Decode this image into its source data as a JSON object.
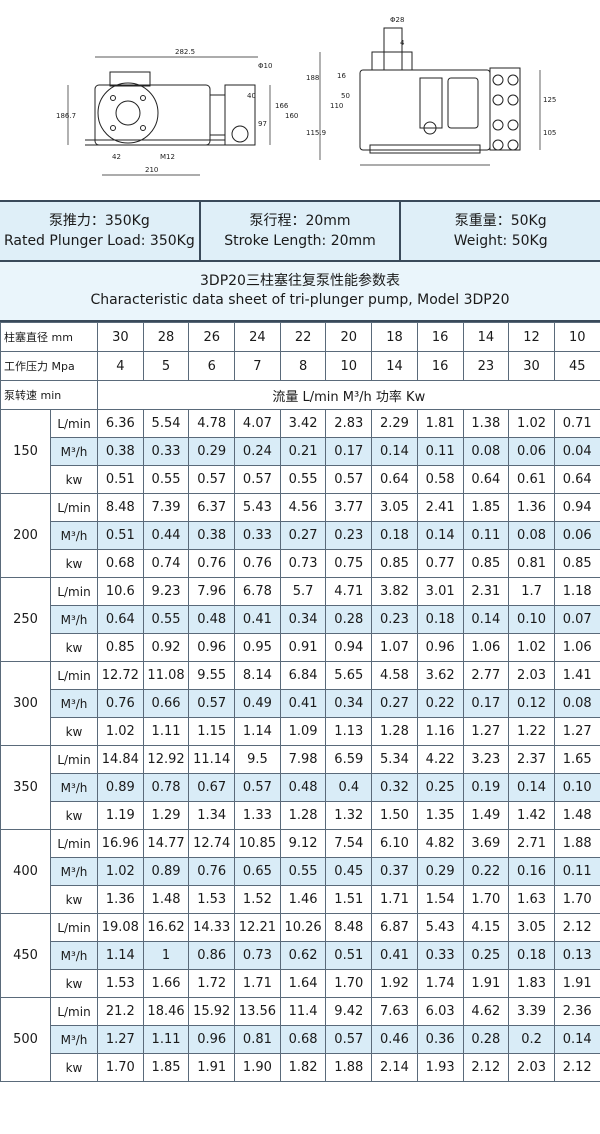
{
  "drawing": {
    "dims": [
      "282.5",
      "Φ10",
      "40",
      "186.7",
      "42",
      "M12",
      "210",
      "Φ28",
      "4",
      "188",
      "16",
      "110",
      "50",
      "97",
      "166",
      "160",
      "115.9",
      "125",
      "105"
    ]
  },
  "specs": [
    {
      "zh": "泵推力：350Kg",
      "en": "Rated Plunger Load: 350Kg"
    },
    {
      "zh": "泵行程：20mm",
      "en": "Stroke Length: 20mm"
    },
    {
      "zh": "泵重量：50Kg",
      "en": "Weight: 50Kg"
    }
  ],
  "table_title": {
    "zh": "3DP20三柱塞往复泵性能参数表",
    "en": "Characteristic data sheet of tri-plunger pump, Model 3DP20"
  },
  "header": {
    "diameter_label": "柱塞直径 mm",
    "diameters": [
      "30",
      "28",
      "26",
      "24",
      "22",
      "20",
      "18",
      "16",
      "14",
      "12",
      "10"
    ],
    "pressure_label": "工作压力 Mpa",
    "pressures": [
      "4",
      "5",
      "6",
      "7",
      "8",
      "10",
      "14",
      "16",
      "23",
      "30",
      "45"
    ],
    "speed_label": "泵转速 min",
    "band_label": "流量 L/min  M³/h  功率 Kw"
  },
  "units": [
    "L/min",
    "M³/h",
    "kw"
  ],
  "rows": [
    {
      "speed": "150",
      "lmin": [
        "6.36",
        "5.54",
        "4.78",
        "4.07",
        "3.42",
        "2.83",
        "2.29",
        "1.81",
        "1.38",
        "1.02",
        "0.71"
      ],
      "m3h": [
        "0.38",
        "0.33",
        "0.29",
        "0.24",
        "0.21",
        "0.17",
        "0.14",
        "0.11",
        "0.08",
        "0.06",
        "0.04"
      ],
      "kw": [
        "0.51",
        "0.55",
        "0.57",
        "0.57",
        "0.55",
        "0.57",
        "0.64",
        "0.58",
        "0.64",
        "0.61",
        "0.64"
      ]
    },
    {
      "speed": "200",
      "lmin": [
        "8.48",
        "7.39",
        "6.37",
        "5.43",
        "4.56",
        "3.77",
        "3.05",
        "2.41",
        "1.85",
        "1.36",
        "0.94"
      ],
      "m3h": [
        "0.51",
        "0.44",
        "0.38",
        "0.33",
        "0.27",
        "0.23",
        "0.18",
        "0.14",
        "0.11",
        "0.08",
        "0.06"
      ],
      "kw": [
        "0.68",
        "0.74",
        "0.76",
        "0.76",
        "0.73",
        "0.75",
        "0.85",
        "0.77",
        "0.85",
        "0.81",
        "0.85"
      ]
    },
    {
      "speed": "250",
      "lmin": [
        "10.6",
        "9.23",
        "7.96",
        "6.78",
        "5.7",
        "4.71",
        "3.82",
        "3.01",
        "2.31",
        "1.7",
        "1.18"
      ],
      "m3h": [
        "0.64",
        "0.55",
        "0.48",
        "0.41",
        "0.34",
        "0.28",
        "0.23",
        "0.18",
        "0.14",
        "0.10",
        "0.07"
      ],
      "kw": [
        "0.85",
        "0.92",
        "0.96",
        "0.95",
        "0.91",
        "0.94",
        "1.07",
        "0.96",
        "1.06",
        "1.02",
        "1.06"
      ]
    },
    {
      "speed": "300",
      "lmin": [
        "12.72",
        "11.08",
        "9.55",
        "8.14",
        "6.84",
        "5.65",
        "4.58",
        "3.62",
        "2.77",
        "2.03",
        "1.41"
      ],
      "m3h": [
        "0.76",
        "0.66",
        "0.57",
        "0.49",
        "0.41",
        "0.34",
        "0.27",
        "0.22",
        "0.17",
        "0.12",
        "0.08"
      ],
      "kw": [
        "1.02",
        "1.11",
        "1.15",
        "1.14",
        "1.09",
        "1.13",
        "1.28",
        "1.16",
        "1.27",
        "1.22",
        "1.27"
      ]
    },
    {
      "speed": "350",
      "lmin": [
        "14.84",
        "12.92",
        "11.14",
        "9.5",
        "7.98",
        "6.59",
        "5.34",
        "4.22",
        "3.23",
        "2.37",
        "1.65"
      ],
      "m3h": [
        "0.89",
        "0.78",
        "0.67",
        "0.57",
        "0.48",
        "0.4",
        "0.32",
        "0.25",
        "0.19",
        "0.14",
        "0.10"
      ],
      "kw": [
        "1.19",
        "1.29",
        "1.34",
        "1.33",
        "1.28",
        "1.32",
        "1.50",
        "1.35",
        "1.49",
        "1.42",
        "1.48"
      ]
    },
    {
      "speed": "400",
      "lmin": [
        "16.96",
        "14.77",
        "12.74",
        "10.85",
        "9.12",
        "7.54",
        "6.10",
        "4.82",
        "3.69",
        "2.71",
        "1.88"
      ],
      "m3h": [
        "1.02",
        "0.89",
        "0.76",
        "0.65",
        "0.55",
        "0.45",
        "0.37",
        "0.29",
        "0.22",
        "0.16",
        "0.11"
      ],
      "kw": [
        "1.36",
        "1.48",
        "1.53",
        "1.52",
        "1.46",
        "1.51",
        "1.71",
        "1.54",
        "1.70",
        "1.63",
        "1.70"
      ]
    },
    {
      "speed": "450",
      "lmin": [
        "19.08",
        "16.62",
        "14.33",
        "12.21",
        "10.26",
        "8.48",
        "6.87",
        "5.43",
        "4.15",
        "3.05",
        "2.12"
      ],
      "m3h": [
        "1.14",
        "1",
        "0.86",
        "0.73",
        "0.62",
        "0.51",
        "0.41",
        "0.33",
        "0.25",
        "0.18",
        "0.13"
      ],
      "kw": [
        "1.53",
        "1.66",
        "1.72",
        "1.71",
        "1.64",
        "1.70",
        "1.92",
        "1.74",
        "1.91",
        "1.83",
        "1.91"
      ]
    },
    {
      "speed": "500",
      "lmin": [
        "21.2",
        "18.46",
        "15.92",
        "13.56",
        "11.4",
        "9.42",
        "7.63",
        "6.03",
        "4.62",
        "3.39",
        "2.36"
      ],
      "m3h": [
        "1.27",
        "1.11",
        "0.96",
        "0.81",
        "0.68",
        "0.57",
        "0.46",
        "0.36",
        "0.28",
        "0.2",
        "0.14"
      ],
      "kw": [
        "1.70",
        "1.85",
        "1.91",
        "1.90",
        "1.82",
        "1.88",
        "2.14",
        "1.93",
        "2.12",
        "2.03",
        "2.12"
      ]
    }
  ]
}
